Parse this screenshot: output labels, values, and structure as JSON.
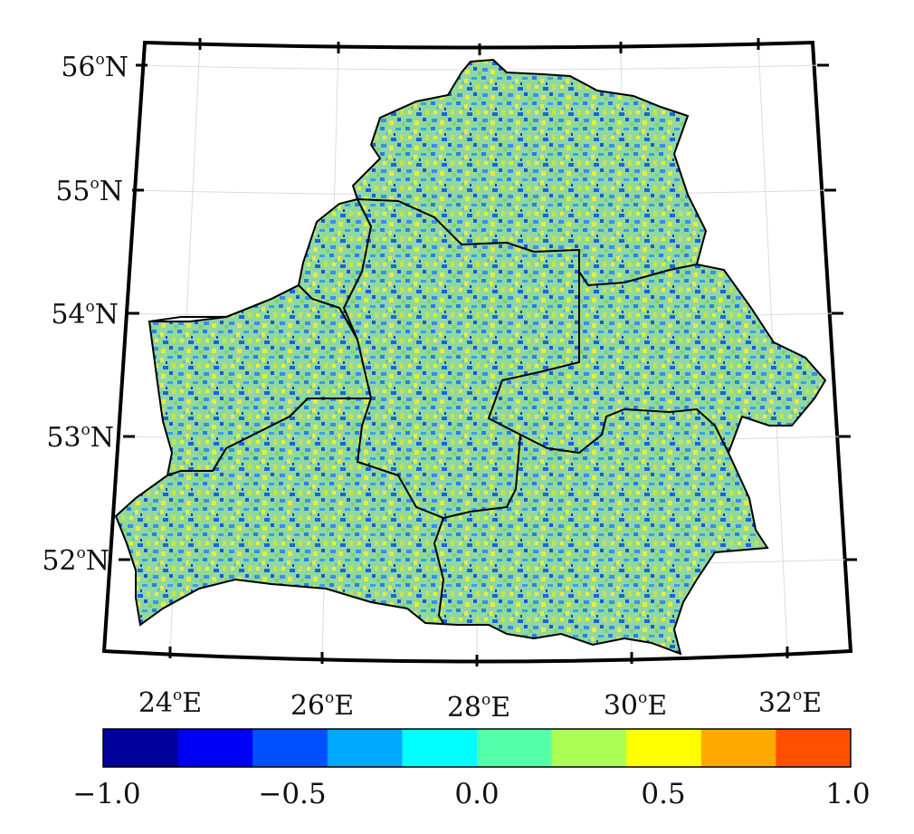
{
  "map": {
    "lat_labels": [
      {
        "deg": "56",
        "sym": "o",
        "hemi": "N"
      },
      {
        "deg": "55",
        "sym": "o",
        "hemi": "N"
      },
      {
        "deg": "54",
        "sym": "o",
        "hemi": "N"
      },
      {
        "deg": "53",
        "sym": "o",
        "hemi": "N"
      },
      {
        "deg": "52",
        "sym": "o",
        "hemi": "N"
      }
    ],
    "lon_labels": [
      {
        "deg": "24",
        "sym": "o",
        "hemi": "E"
      },
      {
        "deg": "26",
        "sym": "o",
        "hemi": "E"
      },
      {
        "deg": "28",
        "sym": "o",
        "hemi": "E"
      },
      {
        "deg": "30",
        "sym": "o",
        "hemi": "E"
      },
      {
        "deg": "32",
        "sym": "o",
        "hemi": "E"
      }
    ]
  },
  "colorbar": {
    "colors": [
      "#00009b",
      "#0000f5",
      "#0050ff",
      "#00a8ff",
      "#00ffff",
      "#55ffaa",
      "#aaff55",
      "#ffff00",
      "#ffaa00",
      "#ff5000"
    ],
    "ticks": [
      "−1.0",
      "−0.5",
      "0.0",
      "0.5",
      "1.0"
    ]
  }
}
